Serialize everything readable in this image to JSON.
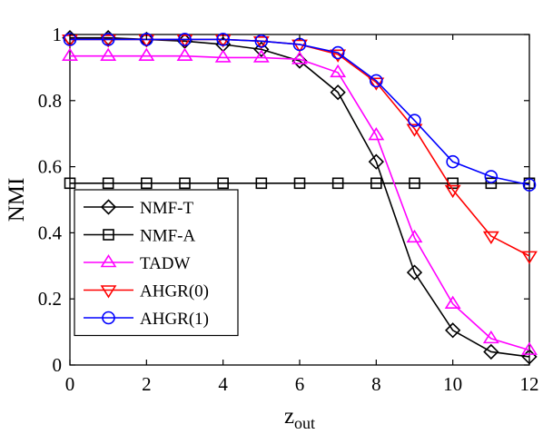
{
  "chart_data": {
    "type": "line",
    "title": "",
    "xlabel": "z",
    "xlabel_subscript": "out",
    "ylabel": "NMI",
    "xlim": [
      0,
      12
    ],
    "ylim": [
      0,
      1
    ],
    "xticks": [
      "0",
      "2",
      "4",
      "6",
      "8",
      "10",
      "12"
    ],
    "yticks": [
      "0",
      "0.2",
      "0.4",
      "0.6",
      "0.8",
      "1"
    ],
    "grid": false,
    "legend_position": "bottom-left",
    "x": [
      0,
      1,
      2,
      3,
      4,
      5,
      6,
      7,
      8,
      9,
      10,
      11,
      12
    ],
    "series": [
      {
        "name": "NMF-T",
        "color": "#000000",
        "marker": "diamond",
        "values": [
          0.99,
          0.99,
          0.985,
          0.98,
          0.97,
          0.955,
          0.92,
          0.825,
          0.615,
          0.28,
          0.105,
          0.04,
          0.025
        ]
      },
      {
        "name": "NMF-A",
        "color": "#000000",
        "marker": "square",
        "values": [
          0.55,
          0.55,
          0.55,
          0.55,
          0.55,
          0.55,
          0.55,
          0.55,
          0.55,
          0.55,
          0.55,
          0.55,
          0.55
        ]
      },
      {
        "name": "TADW",
        "color": "#ff00ff",
        "marker": "triangle-up",
        "values": [
          0.935,
          0.935,
          0.935,
          0.935,
          0.93,
          0.93,
          0.925,
          0.885,
          0.695,
          0.385,
          0.185,
          0.08,
          0.045
        ]
      },
      {
        "name": "AHGR(0)",
        "color": "#ff0000",
        "marker": "triangle-down",
        "values": [
          0.985,
          0.985,
          0.985,
          0.985,
          0.985,
          0.98,
          0.97,
          0.94,
          0.855,
          0.715,
          0.53,
          0.39,
          0.33
        ]
      },
      {
        "name": "AHGR(1)",
        "color": "#0000ff",
        "marker": "circle",
        "values": [
          0.985,
          0.985,
          0.985,
          0.985,
          0.985,
          0.98,
          0.97,
          0.945,
          0.86,
          0.74,
          0.615,
          0.57,
          0.545
        ]
      }
    ]
  }
}
